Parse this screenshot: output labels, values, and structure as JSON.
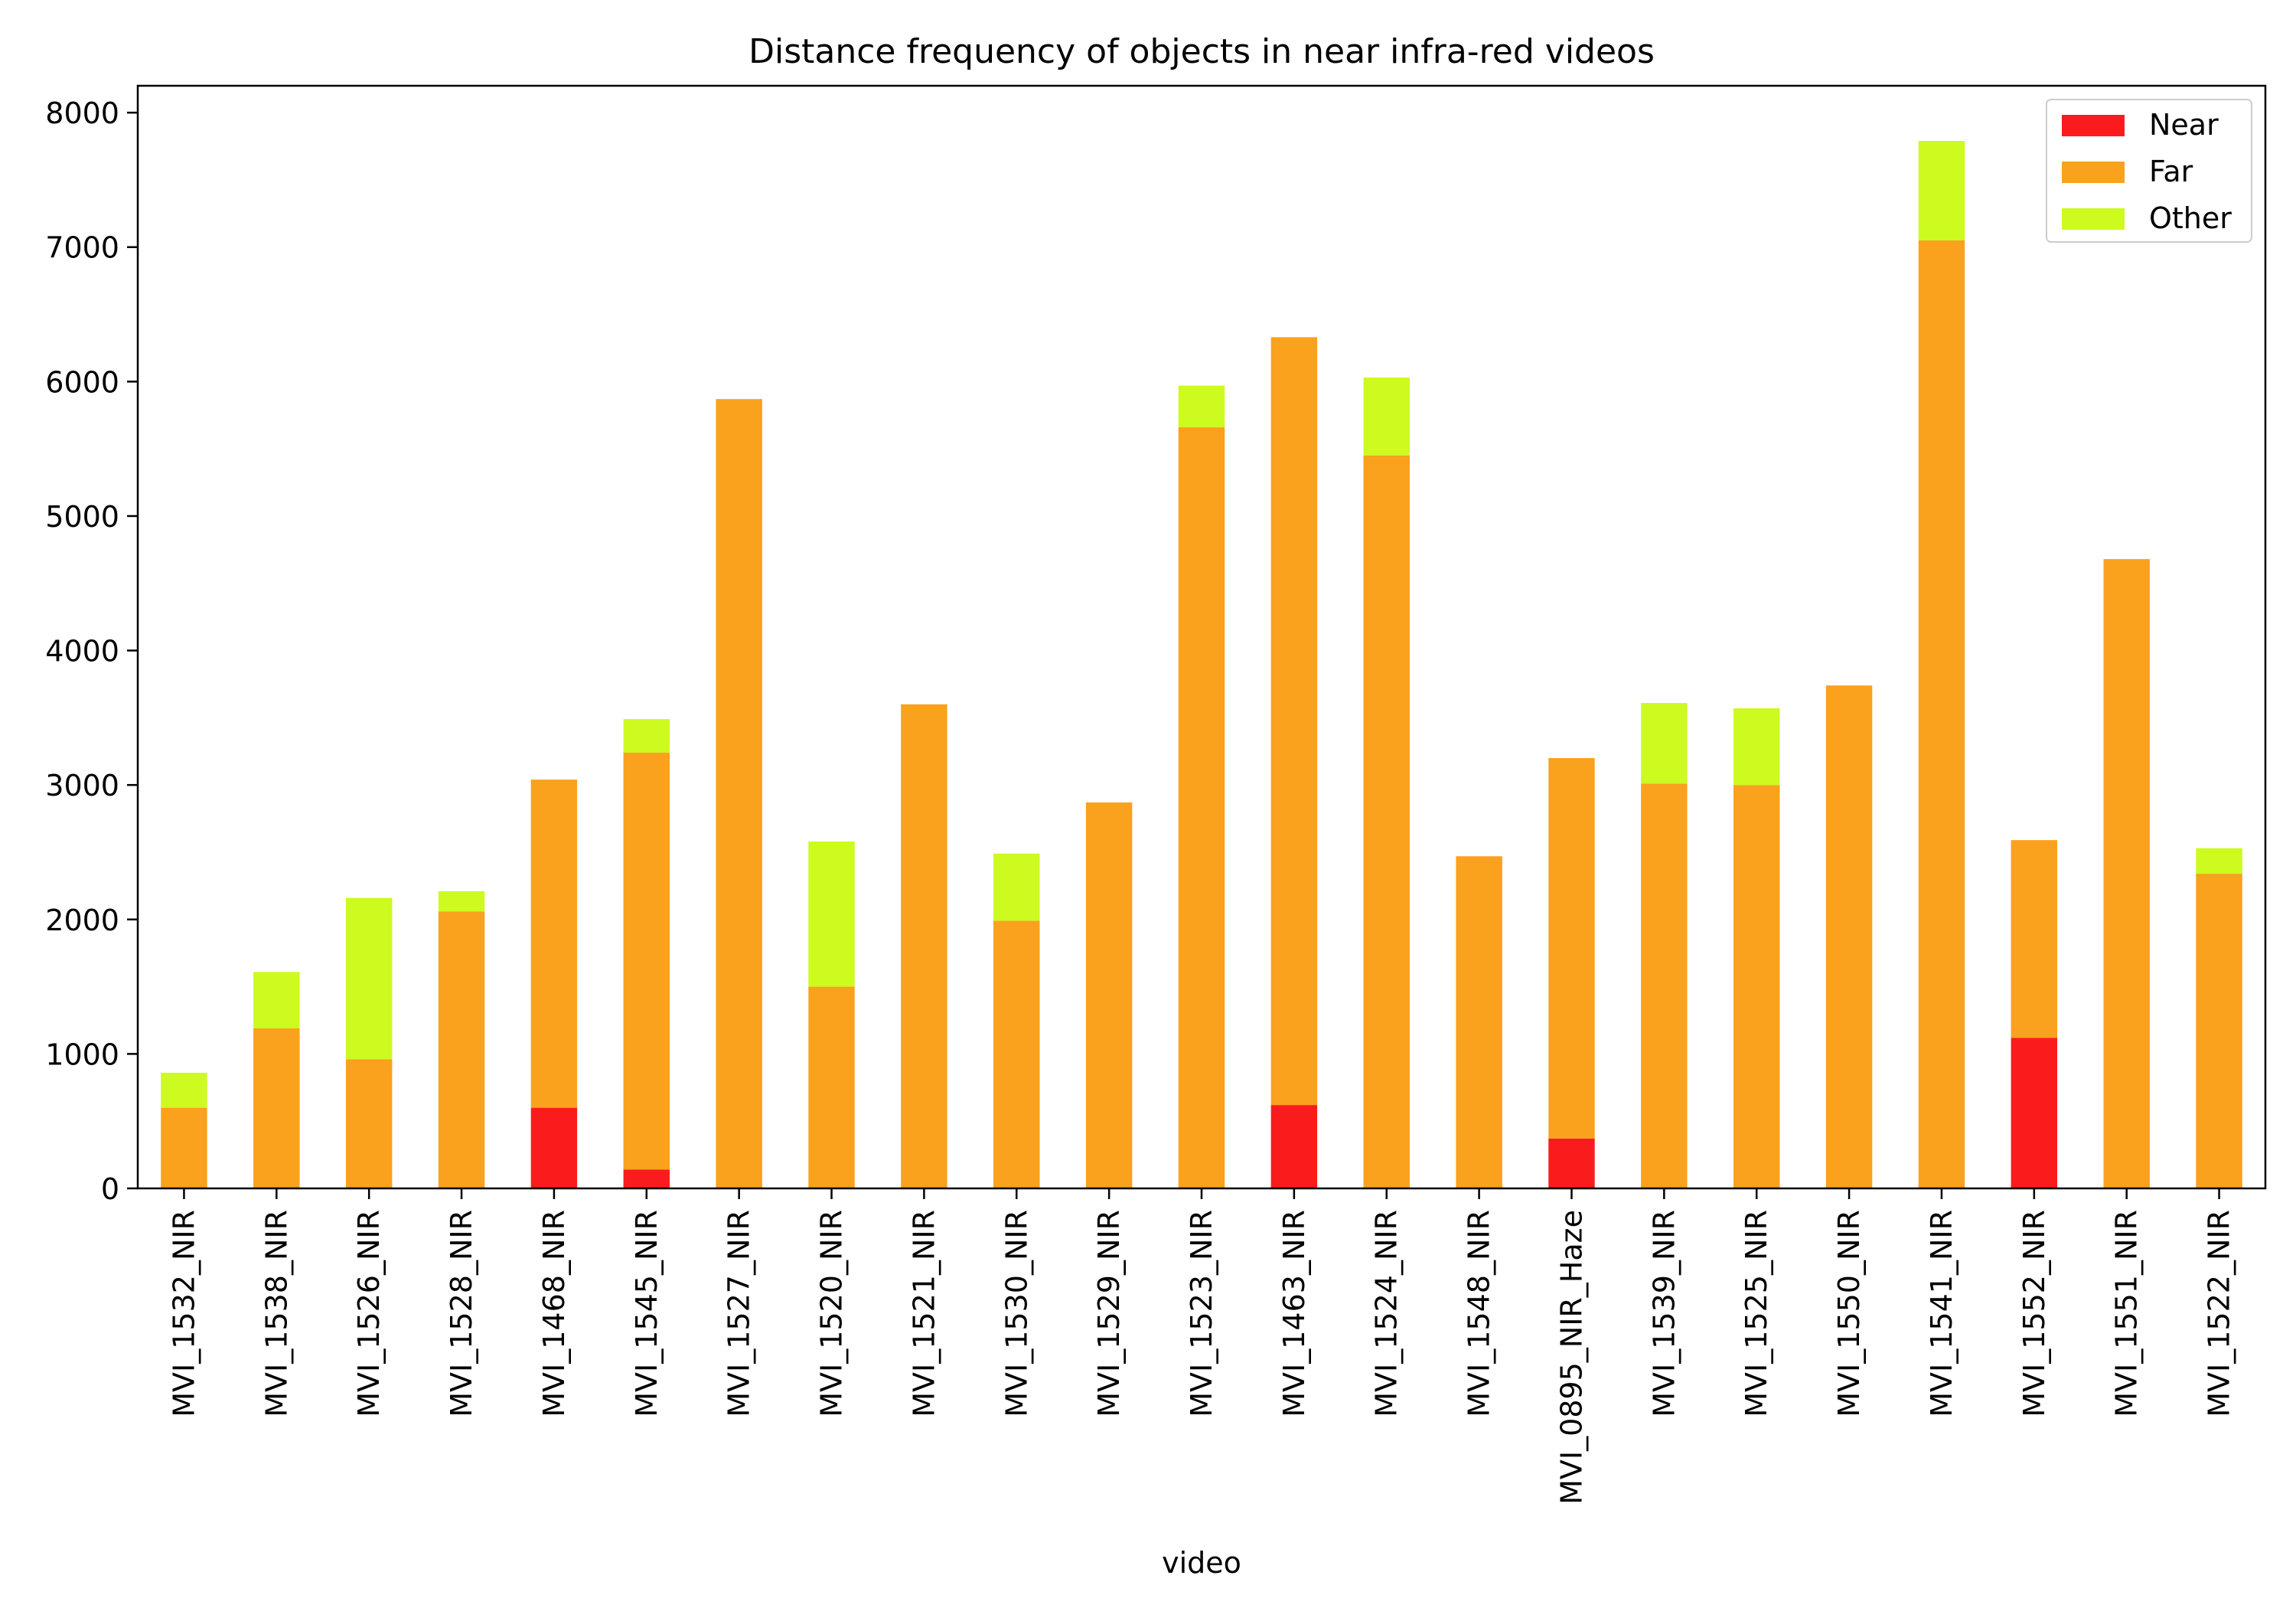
{
  "chart_data": {
    "type": "bar",
    "stacked": true,
    "title": "Distance frequency of objects in near infra-red videos",
    "xlabel": "video",
    "ylabel": "",
    "ylim": [
      0,
      8200
    ],
    "yticks": [
      0,
      1000,
      2000,
      3000,
      4000,
      5000,
      6000,
      7000,
      8000
    ],
    "grid": false,
    "legend_position": "top-right",
    "categories": [
      "MVI_1532_NIR",
      "MVI_1538_NIR",
      "MVI_1526_NIR",
      "MVI_1528_NIR",
      "MVI_1468_NIR",
      "MVI_1545_NIR",
      "MVI_1527_NIR",
      "MVI_1520_NIR",
      "MVI_1521_NIR",
      "MVI_1530_NIR",
      "MVI_1529_NIR",
      "MVI_1523_NIR",
      "MVI_1463_NIR",
      "MVI_1524_NIR",
      "MVI_1548_NIR",
      "MVI_0895_NIR_Haze",
      "MVI_1539_NIR",
      "MVI_1525_NIR",
      "MVI_1550_NIR",
      "MVI_1541_NIR",
      "MVI_1552_NIR",
      "MVI_1551_NIR",
      "MVI_1522_NIR"
    ],
    "series": [
      {
        "name": "Near",
        "color": "#fa1c1c",
        "values": [
          0,
          0,
          0,
          0,
          600,
          140,
          0,
          0,
          0,
          0,
          0,
          0,
          620,
          0,
          0,
          370,
          0,
          0,
          0,
          0,
          1120,
          0,
          0
        ]
      },
      {
        "name": "Far",
        "color": "#faa11d",
        "values": [
          600,
          1190,
          960,
          2060,
          2440,
          3100,
          5870,
          1500,
          3600,
          1990,
          2870,
          5660,
          5710,
          5450,
          2470,
          2830,
          3010,
          3000,
          3740,
          7050,
          1470,
          4680,
          2340
        ]
      },
      {
        "name": "Other",
        "color": "#cdfa1f",
        "values": [
          260,
          420,
          1200,
          150,
          0,
          250,
          0,
          1080,
          0,
          500,
          0,
          310,
          0,
          580,
          0,
          0,
          600,
          570,
          0,
          740,
          0,
          0,
          190
        ]
      }
    ]
  }
}
